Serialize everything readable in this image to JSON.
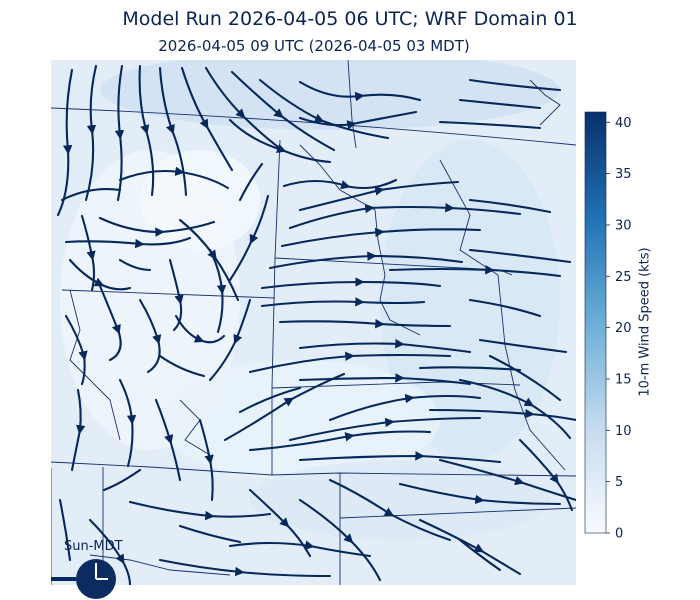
{
  "header": {
    "title": "Model Run 2026-04-05 06 UTC; WRF Domain 01",
    "subtitle": "2026-04-05 09 UTC  (2026-04-05 03 MDT)"
  },
  "clock": {
    "label": "Sun-MDT"
  },
  "colors": {
    "streamline": "#07285a",
    "border": "#17306b",
    "cmap_low": "#f7fbff",
    "cmap_mid": "#6baed6",
    "cmap_high": "#08306b"
  },
  "chart_data": {
    "type": "heatmap",
    "colorbar": {
      "label": "10-m Wind Speed (kts)",
      "min": 0,
      "max": 41,
      "ticks": [
        0,
        5,
        10,
        15,
        20,
        25,
        30,
        35,
        40
      ]
    },
    "field": "10-m wind streamlines over mostly light winds (~0-10 kts)"
  }
}
